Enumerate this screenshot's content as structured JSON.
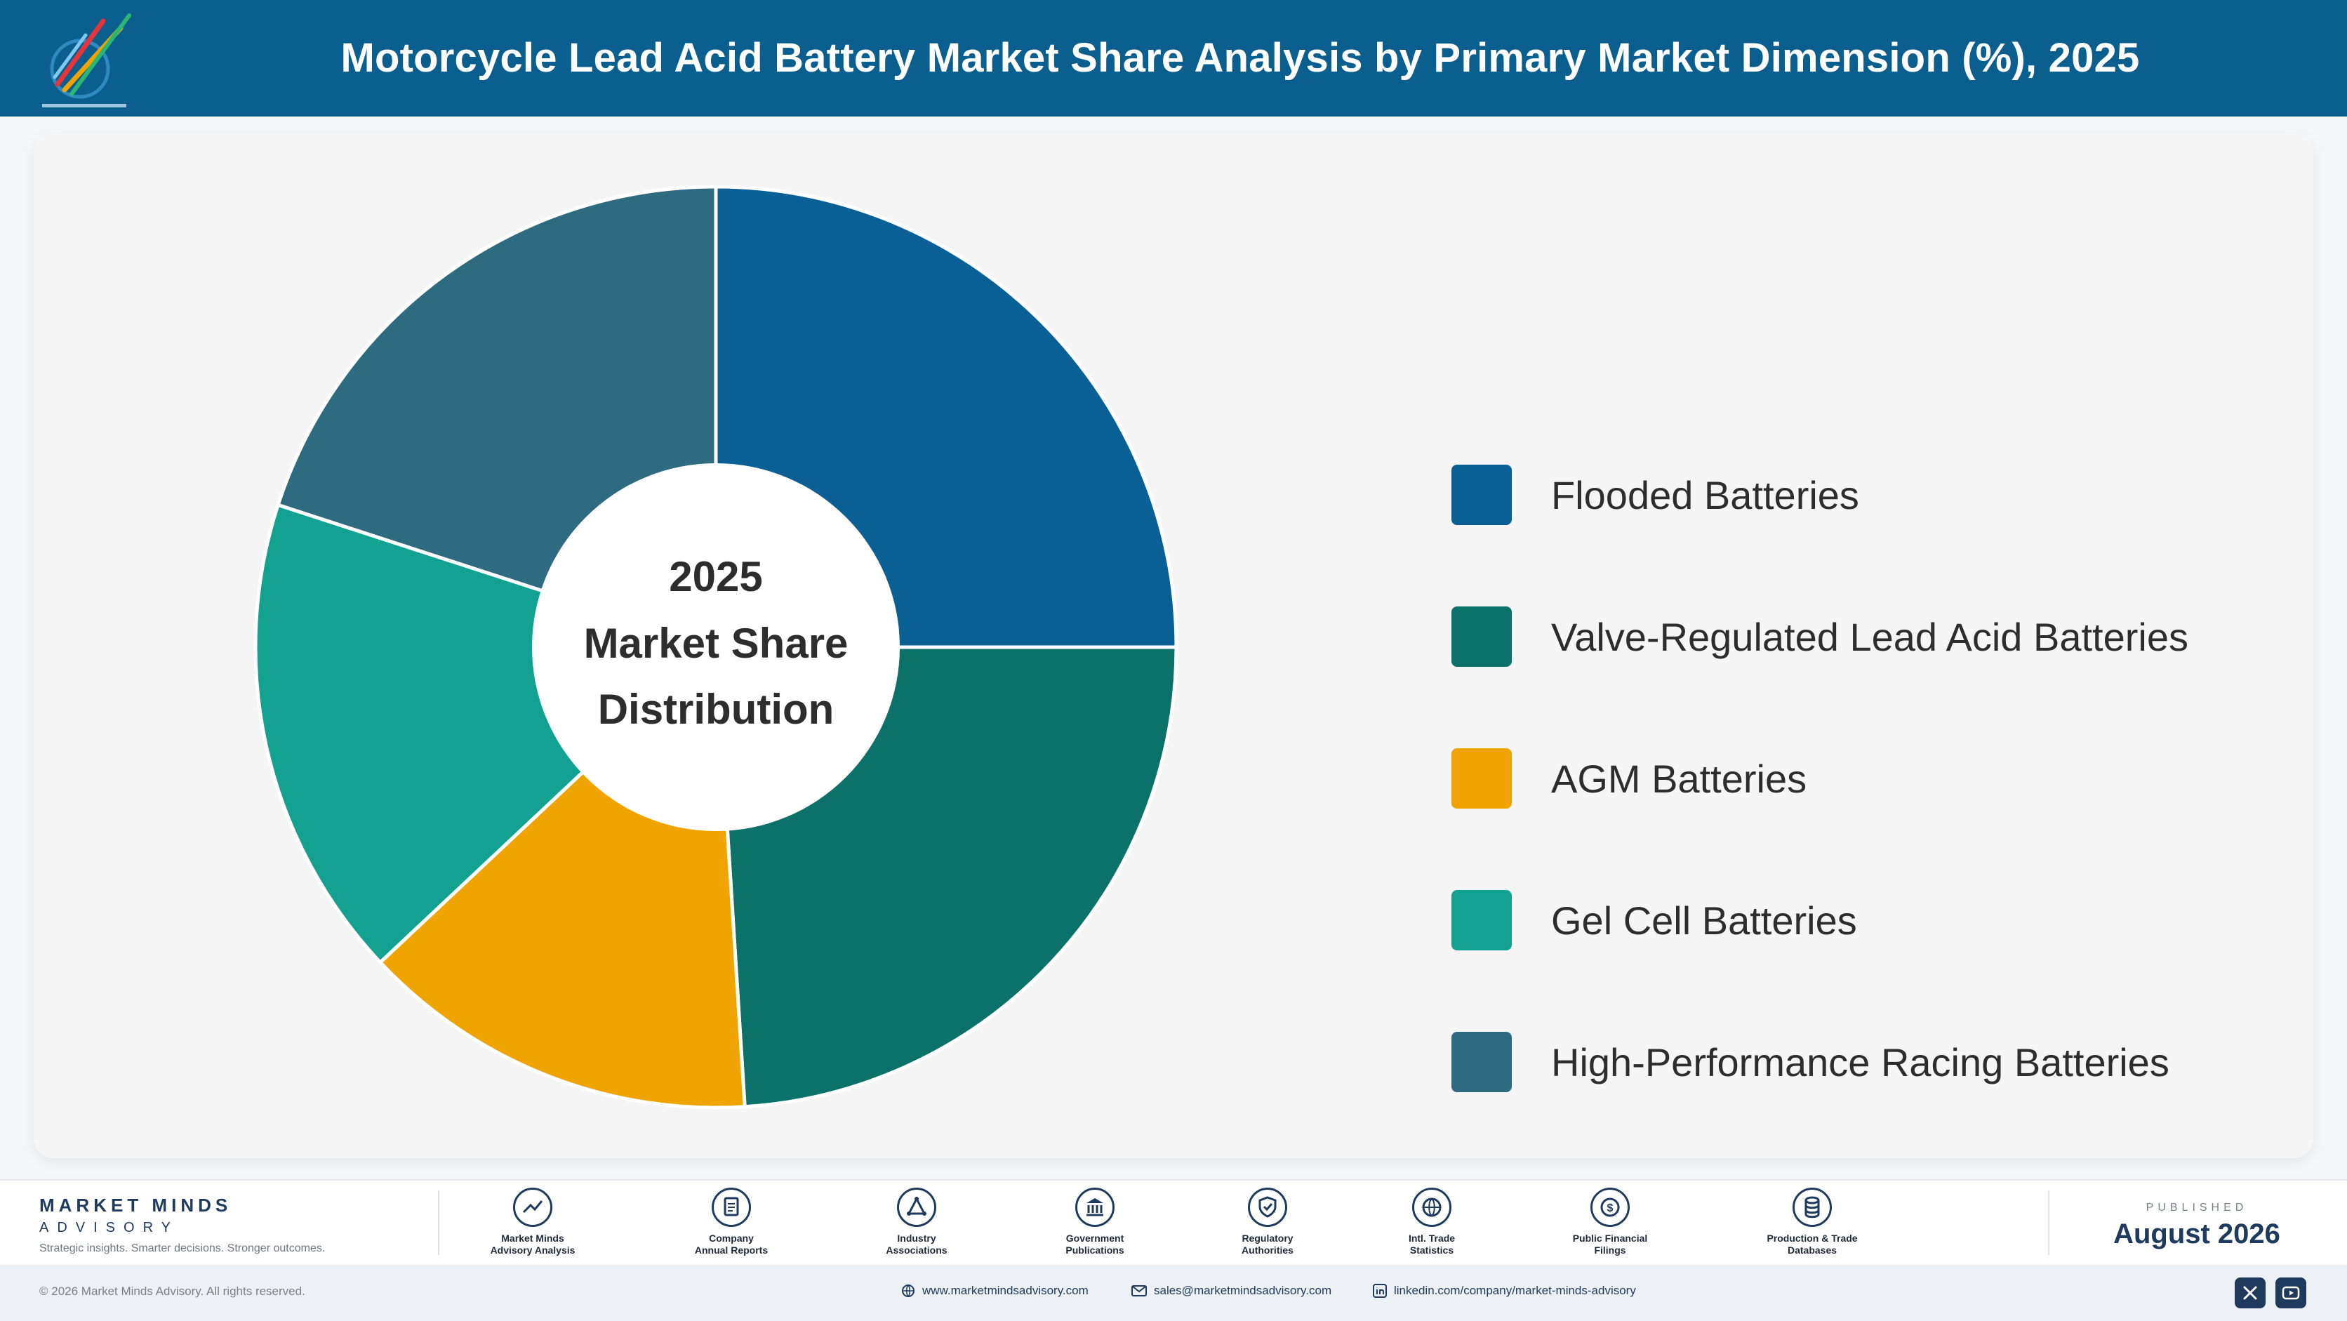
{
  "header": {
    "title": "Motorcycle Lead Acid Battery Market Share Analysis by Primary Market Dimension (%), 2025",
    "logo_icon": "market-minds-logo"
  },
  "chart_data": {
    "type": "pie",
    "title": "Motorcycle Lead Acid Battery Market Share Analysis by Primary Market Dimension (%), 2025",
    "center_label": [
      "2025",
      "Market Share",
      "Distribution"
    ],
    "categories": [
      "Flooded Batteries",
      "Valve-Regulated Lead Acid Batteries",
      "AGM Batteries",
      "Gel Cell Batteries",
      "High-Performance Racing Batteries"
    ],
    "values": [
      25,
      24,
      14,
      17,
      20
    ],
    "colors": [
      "#0a5f95",
      "#0c7169",
      "#f0a402",
      "#13a292",
      "#2f6b80"
    ],
    "legend_position": "right",
    "data_labels": false
  },
  "footer": {
    "brand_name": "MARKET MINDS",
    "brand_sub": "ADVISORY",
    "brand_tagline": "Strategic insights. Smarter decisions. Stronger outcomes.",
    "sources": [
      {
        "label": "Market Minds\nAdvisory Analysis",
        "icon": "trend-line-icon"
      },
      {
        "label": "Company\nAnnual Reports",
        "icon": "document-icon"
      },
      {
        "label": "Industry\nAssociations",
        "icon": "network-icon"
      },
      {
        "label": "Government\nPublications",
        "icon": "government-building-icon"
      },
      {
        "label": "Regulatory\nAuthorities",
        "icon": "shield-check-icon"
      },
      {
        "label": "Intl. Trade\nStatistics",
        "icon": "globe-icon"
      },
      {
        "label": "Public Financial\nFilings",
        "icon": "dollar-coin-icon"
      },
      {
        "label": "Production & Trade\nDatabases",
        "icon": "database-icon"
      }
    ],
    "published_caption": "PUBLISHED",
    "published_date": "August 2026"
  },
  "bottom_bar": {
    "copyright": "© 2026 Market Minds Advisory. All rights reserved.",
    "website": "www.marketmindsadvisory.com",
    "email": "sales@marketmindsadvisory.com",
    "linkedin": "linkedin.com/company/market-minds-advisory",
    "social_icons": [
      "x-icon",
      "youtube-icon"
    ]
  }
}
